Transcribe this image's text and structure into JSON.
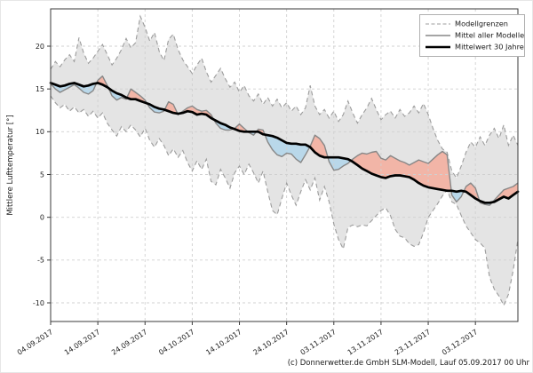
{
  "figure": {
    "y_axis_label": "Mittlere Lufttemperatur [°]",
    "caption": "(c) Donnerwetter.de GmbH SLM-Modell, Lauf 05.09.2017 00 Uhr"
  },
  "legend": {
    "items": [
      {
        "label": "Modellgrenzen",
        "style": "dashed-gray"
      },
      {
        "label": "Mittel aller Modelle",
        "style": "solid-gray"
      },
      {
        "label": "Mittelwert 30 Jahre",
        "style": "solid-black-thick"
      }
    ]
  },
  "colors": {
    "band_fill": "#e4e4e4",
    "band_edge": "#9c9c9c",
    "model_mean_line": "#878787",
    "climate_mean_line": "#000000",
    "warm_fill": "#f2b5a7",
    "cold_fill": "#b9d8ea",
    "grid": "#d0d0d0",
    "frame": "#3a3a3a"
  },
  "chart_data": {
    "type": "line",
    "title": "",
    "xlabel": "",
    "ylabel": "Mittlere Lufttemperatur [°]",
    "x_unit": "Tage ab 04.09.2017 (Tagesschritte)",
    "xlim": [
      0,
      99
    ],
    "ylim": [
      -12.2,
      24.4
    ],
    "grid": true,
    "legend_position": "top-right",
    "x_tick_days": [
      0,
      10,
      20,
      30,
      40,
      50,
      60,
      70,
      80,
      90
    ],
    "x_tick_labels": [
      "04.09.2017",
      "14.09.2017",
      "24.09.2017",
      "04.10.2017",
      "14.10.2017",
      "24.10.2017",
      "03.11.2017",
      "13.11.2017",
      "23.11.2017",
      "03.12.2017"
    ],
    "y_ticks": [
      20,
      15,
      10,
      5,
      0,
      -5,
      -10
    ],
    "series": [
      {
        "key": "upper",
        "name": "Modellgrenzen (obere Grenze)",
        "values": [
          17.3,
          18.2,
          17.6,
          18.4,
          19.0,
          18.2,
          21.0,
          19.2,
          18.0,
          18.6,
          19.4,
          20.2,
          19.0,
          17.8,
          18.6,
          19.6,
          20.9,
          19.8,
          20.4,
          23.5,
          22.2,
          20.6,
          21.6,
          19.4,
          18.3,
          20.8,
          21.4,
          19.6,
          18.4,
          17.6,
          16.8,
          17.8,
          18.6,
          17.0,
          15.8,
          16.6,
          17.4,
          16.2,
          15.2,
          15.8,
          14.6,
          15.4,
          14.2,
          13.6,
          14.4,
          13.2,
          14.0,
          13.0,
          13.8,
          12.8,
          13.4,
          12.4,
          13.0,
          12.0,
          12.8,
          15.4,
          13.0,
          12.0,
          12.6,
          11.6,
          12.4,
          11.2,
          12.0,
          13.6,
          12.2,
          11.0,
          12.0,
          12.8,
          13.9,
          12.6,
          11.4,
          12.0,
          12.4,
          11.6,
          12.6,
          11.8,
          12.2,
          13.0,
          12.2,
          13.3,
          12.0,
          10.4,
          9.0,
          8.0,
          7.6,
          5.4,
          4.6,
          6.0,
          7.6,
          8.8,
          8.2,
          9.4,
          8.4,
          9.6,
          10.4,
          9.2,
          10.8,
          8.4,
          9.6,
          8.4
        ]
      },
      {
        "key": "lower",
        "name": "Modellgrenzen (untere Grenze)",
        "values": [
          14.2,
          13.4,
          12.8,
          13.2,
          12.4,
          12.9,
          12.2,
          12.6,
          11.8,
          12.4,
          11.6,
          12.2,
          11.0,
          10.2,
          9.5,
          10.6,
          10.0,
          10.8,
          10.2,
          9.4,
          10.4,
          9.0,
          8.2,
          9.2,
          8.4,
          7.2,
          8.0,
          7.0,
          7.8,
          6.4,
          5.4,
          6.6,
          5.6,
          6.8,
          4.2,
          3.8,
          5.6,
          4.6,
          3.4,
          5.2,
          6.0,
          5.0,
          6.2,
          5.2,
          4.0,
          5.4,
          3.0,
          0.8,
          0.3,
          2.2,
          4.0,
          2.6,
          1.4,
          3.0,
          4.4,
          3.2,
          4.6,
          2.0,
          3.6,
          1.8,
          -0.8,
          -2.6,
          -3.7,
          -1.2,
          -0.9,
          -1.1,
          -0.9,
          -1.0,
          -0.4,
          0.2,
          0.8,
          1.1,
          0.2,
          -1.4,
          -2.2,
          -2.4,
          -3.1,
          -3.4,
          -3.2,
          -1.8,
          0.0,
          0.8,
          1.6,
          2.5,
          3.2,
          1.8,
          1.5,
          0.2,
          -1.0,
          -1.8,
          -2.6,
          -3.0,
          -3.6,
          -7.0,
          -8.4,
          -9.2,
          -10.3,
          -9.0,
          -6.2,
          -2.6
        ]
      },
      {
        "key": "model",
        "name": "Mittel aller Modelle",
        "values": [
          15.6,
          15.0,
          14.6,
          14.9,
          15.2,
          15.5,
          15.1,
          14.6,
          14.4,
          14.8,
          16.0,
          16.5,
          15.4,
          14.2,
          13.7,
          14.0,
          13.8,
          15.0,
          14.6,
          14.2,
          13.7,
          12.8,
          12.3,
          12.2,
          12.4,
          13.5,
          13.2,
          12.0,
          12.4,
          12.8,
          13.0,
          12.6,
          12.4,
          12.5,
          12.0,
          11.0,
          10.4,
          10.2,
          10.2,
          10.4,
          10.9,
          10.4,
          9.9,
          9.6,
          10.3,
          10.2,
          8.8,
          7.9,
          7.3,
          7.1,
          7.5,
          7.4,
          6.8,
          6.4,
          7.3,
          8.3,
          9.6,
          9.2,
          8.4,
          6.5,
          5.5,
          5.6,
          6.0,
          6.3,
          6.8,
          7.2,
          7.5,
          7.4,
          7.6,
          7.7,
          6.9,
          6.7,
          7.2,
          6.9,
          6.6,
          6.4,
          6.1,
          6.4,
          6.7,
          6.5,
          6.3,
          6.8,
          7.3,
          7.7,
          7.3,
          2.6,
          1.8,
          2.4,
          3.6,
          4.0,
          3.4,
          1.7,
          1.5,
          1.4,
          2.0,
          2.6,
          3.2,
          3.4,
          3.6,
          4.0
        ]
      },
      {
        "key": "climate",
        "name": "Mittelwert 30 Jahre",
        "values": [
          15.7,
          15.5,
          15.3,
          15.4,
          15.6,
          15.7,
          15.5,
          15.3,
          15.4,
          15.6,
          15.7,
          15.5,
          15.2,
          14.8,
          14.5,
          14.3,
          14.0,
          13.8,
          13.8,
          13.6,
          13.4,
          13.2,
          12.9,
          12.7,
          12.6,
          12.4,
          12.2,
          12.1,
          12.2,
          12.4,
          12.3,
          12.0,
          12.1,
          12.0,
          11.6,
          11.3,
          11.0,
          10.8,
          10.5,
          10.3,
          10.1,
          10.0,
          10.0,
          10.0,
          10.0,
          9.7,
          9.6,
          9.5,
          9.3,
          9.0,
          8.7,
          8.6,
          8.6,
          8.5,
          8.5,
          8.2,
          7.6,
          7.2,
          7.0,
          7.0,
          7.0,
          7.0,
          6.9,
          6.8,
          6.5,
          6.1,
          5.7,
          5.4,
          5.1,
          4.9,
          4.7,
          4.6,
          4.8,
          4.9,
          4.9,
          4.8,
          4.7,
          4.4,
          4.0,
          3.7,
          3.5,
          3.4,
          3.3,
          3.2,
          3.1,
          3.1,
          3.0,
          3.1,
          3.0,
          2.6,
          2.2,
          1.9,
          1.7,
          1.7,
          1.8,
          2.1,
          2.4,
          2.2,
          2.6,
          3.0
        ]
      }
    ]
  }
}
